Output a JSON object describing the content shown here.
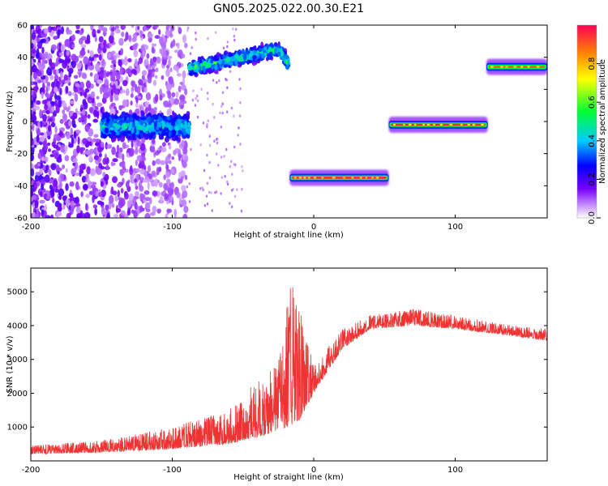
{
  "title": "GN05.2025.022.00.30.E21",
  "chart_data": [
    {
      "type": "heatmap",
      "xlabel": "Height of straight line (km)",
      "ylabel": "Frequency (Hz)",
      "xlim": [
        -200,
        165
      ],
      "ylim": [
        -60,
        60
      ],
      "x_ticks": [
        -200,
        -100,
        0,
        100
      ],
      "y_ticks": [
        -60,
        -40,
        -20,
        0,
        20,
        40,
        60
      ],
      "colorbar": {
        "label": "Normalized spectral amplitude",
        "range": [
          0.0,
          1.0
        ],
        "ticks": [
          "0.0",
          "0.2",
          "0.4",
          "0.6",
          "0.8"
        ],
        "colormap": "rainbow (white → violet → blue → cyan → green → yellow → red)"
      },
      "features": [
        {
          "x_range": [
            -200,
            -150
          ],
          "freq_range": [
            -60,
            60
          ],
          "amplitude": "low-moderate, scattered"
        },
        {
          "x_range": [
            -150,
            -88
          ],
          "freq_center": -3,
          "freq_width": 16,
          "amplitude": 0.3
        },
        {
          "x_range": [
            -88,
            -18
          ],
          "freq_start": 33,
          "freq_end": 46,
          "amplitude": 0.35
        },
        {
          "x_range": [
            -17,
            53
          ],
          "freq_center": -35,
          "amplitude": 0.95
        },
        {
          "x_range": [
            53,
            123
          ],
          "freq_center": -2,
          "amplitude": 0.95
        },
        {
          "x_range": [
            122,
            165
          ],
          "freq_center": 34,
          "amplitude": 0.9
        }
      ]
    },
    {
      "type": "line",
      "xlabel": "Height of straight line (km)",
      "ylabel": "SNR (10 * v/v)",
      "xlim": [
        -200,
        165
      ],
      "ylim": [
        0,
        5700
      ],
      "x_ticks": [
        -200,
        -100,
        0,
        100
      ],
      "y_ticks": [
        1000,
        2000,
        3000,
        4000,
        5000
      ],
      "color": "#ee3333",
      "envelope_points": [
        {
          "x": -200,
          "base": 200,
          "upper": 450
        },
        {
          "x": -150,
          "base": 250,
          "upper": 600
        },
        {
          "x": -100,
          "base": 350,
          "upper": 1000
        },
        {
          "x": -60,
          "base": 500,
          "upper": 1500
        },
        {
          "x": -40,
          "base": 700,
          "upper": 2400
        },
        {
          "x": -25,
          "base": 900,
          "upper": 2900
        },
        {
          "x": -18,
          "base": 1000,
          "upper": 5600
        },
        {
          "x": -10,
          "base": 1200,
          "upper": 4500
        },
        {
          "x": 0,
          "base": 2000,
          "upper": 2800
        },
        {
          "x": 20,
          "base": 3300,
          "upper": 3900
        },
        {
          "x": 40,
          "base": 3900,
          "upper": 4300
        },
        {
          "x": 70,
          "base": 4000,
          "upper": 4500
        },
        {
          "x": 100,
          "base": 3900,
          "upper": 4300
        },
        {
          "x": 140,
          "base": 3700,
          "upper": 4000
        },
        {
          "x": 165,
          "base": 3550,
          "upper": 3900
        }
      ]
    }
  ]
}
